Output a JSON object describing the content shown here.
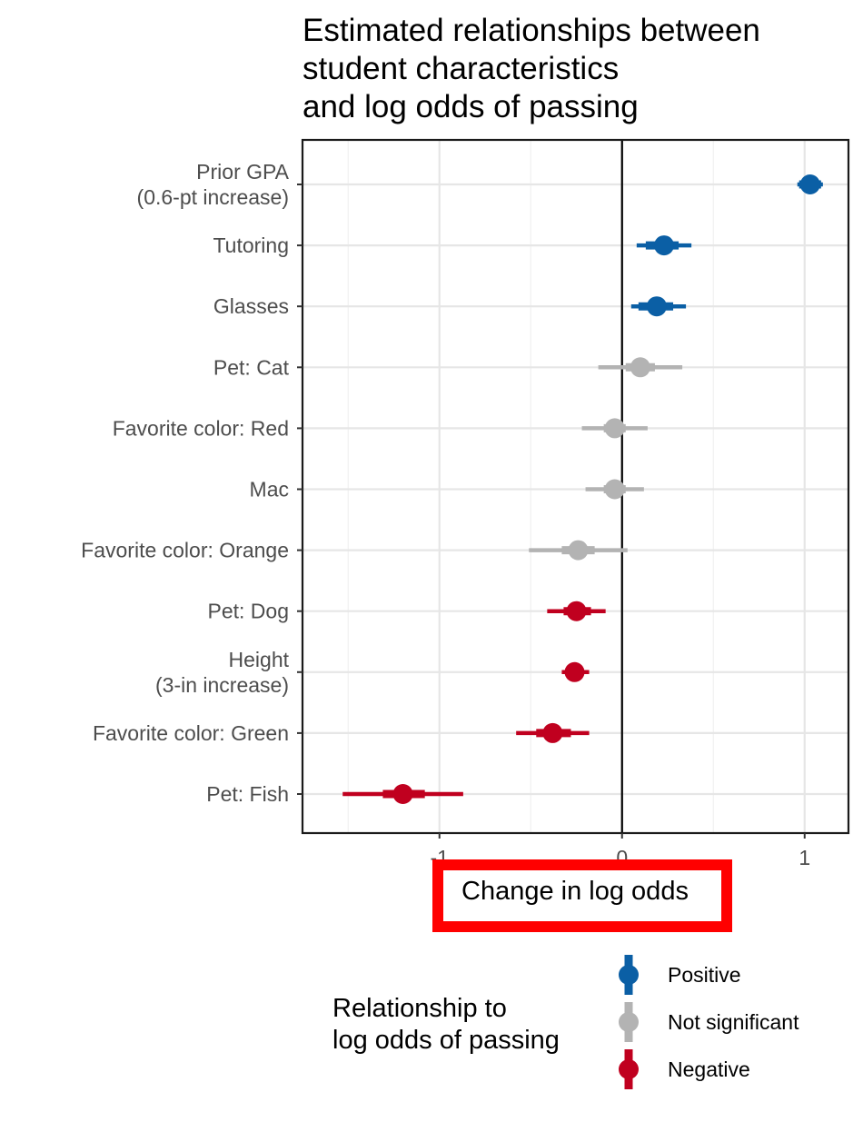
{
  "chart_data": {
    "type": "scatter",
    "subtype": "coefficient-plot",
    "title": [
      "Estimated relationships between",
      "student characteristics",
      "and log odds of passing"
    ],
    "xlabel": "Change in log odds",
    "xlim": [
      -1.75,
      1.24
    ],
    "xticks": [
      -1,
      0,
      1
    ],
    "xtick_labels": [
      "-1",
      "0",
      "1"
    ],
    "grid": true,
    "zero_line": 0,
    "colors": {
      "Positive": "#0b5fa5",
      "Not significant": "#b3b3b3",
      "Negative": "#c0001f",
      "highlight": "#ff0000"
    },
    "legend": {
      "title": [
        "Relationship to",
        "log odds of passing"
      ],
      "placement": "bottom",
      "entries": [
        "Positive",
        "Not significant",
        "Negative"
      ]
    },
    "points": [
      {
        "label": [
          "Prior GPA",
          "(0.6-pt increase)"
        ],
        "estimate": 1.03,
        "inner": [
          0.97,
          1.09
        ],
        "outer": [
          0.96,
          1.1
        ],
        "group": "Positive"
      },
      {
        "label": [
          "Tutoring"
        ],
        "estimate": 0.23,
        "inner": [
          0.13,
          0.31
        ],
        "outer": [
          0.08,
          0.38
        ],
        "group": "Positive"
      },
      {
        "label": [
          "Glasses"
        ],
        "estimate": 0.19,
        "inner": [
          0.09,
          0.28
        ],
        "outer": [
          0.05,
          0.35
        ],
        "group": "Positive"
      },
      {
        "label": [
          "Pet: Cat"
        ],
        "estimate": 0.1,
        "inner": [
          0.02,
          0.18
        ],
        "outer": [
          -0.13,
          0.33
        ],
        "group": "Not significant"
      },
      {
        "label": [
          "Favorite color: Red"
        ],
        "estimate": -0.04,
        "inner": [
          -0.1,
          0.02
        ],
        "outer": [
          -0.22,
          0.14
        ],
        "group": "Not significant"
      },
      {
        "label": [
          "Mac"
        ],
        "estimate": -0.04,
        "inner": [
          -0.1,
          0.02
        ],
        "outer": [
          -0.2,
          0.12
        ],
        "group": "Not significant"
      },
      {
        "label": [
          "Favorite color: Orange"
        ],
        "estimate": -0.24,
        "inner": [
          -0.33,
          -0.15
        ],
        "outer": [
          -0.51,
          0.03
        ],
        "group": "Not significant"
      },
      {
        "label": [
          "Pet: Dog"
        ],
        "estimate": -0.25,
        "inner": [
          -0.32,
          -0.17
        ],
        "outer": [
          -0.41,
          -0.09
        ],
        "group": "Negative"
      },
      {
        "label": [
          "Height",
          "(3-in increase)"
        ],
        "estimate": -0.26,
        "inner": [
          -0.31,
          -0.21
        ],
        "outer": [
          -0.33,
          -0.18
        ],
        "group": "Negative"
      },
      {
        "label": [
          "Favorite color: Green"
        ],
        "estimate": -0.38,
        "inner": [
          -0.47,
          -0.28
        ],
        "outer": [
          -0.58,
          -0.18
        ],
        "group": "Negative"
      },
      {
        "label": [
          "Pet: Fish"
        ],
        "estimate": -1.2,
        "inner": [
          -1.31,
          -1.08
        ],
        "outer": [
          -1.53,
          -0.87
        ],
        "group": "Negative"
      }
    ]
  }
}
